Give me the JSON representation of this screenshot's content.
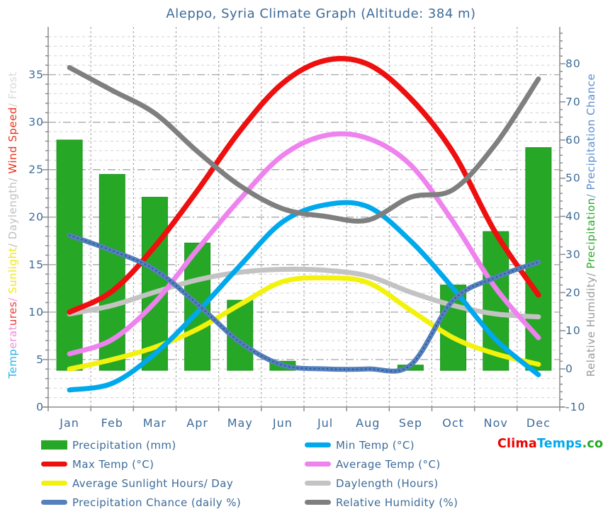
{
  "title": "Aleppo, Syria Climate Graph (Altitude: 384 m)",
  "chart_data": {
    "type": "bar+line combo, dual axis climate graph",
    "months": [
      "Jan",
      "Feb",
      "Mar",
      "Apr",
      "May",
      "Jun",
      "Jul",
      "Aug",
      "Sep",
      "Oct",
      "Nov",
      "Dec"
    ],
    "left_axis": {
      "ticks": [
        0,
        5,
        10,
        15,
        20,
        25,
        30,
        35
      ],
      "range": [
        0,
        39.5
      ],
      "minor_tick_step": 1,
      "label_segments": [
        {
          "text": "Temp",
          "color": "#2ab4e8"
        },
        {
          "text": "erat",
          "color": "#f08fd8"
        },
        {
          "text": "ures",
          "color": "#e83a3a"
        },
        {
          "text": "/ ",
          "color": "#f08fd8"
        },
        {
          "text": "Sunlight",
          "color": "#f0e818"
        },
        {
          "text": "/ ",
          "color": "#b9b9b9"
        },
        {
          "text": "Daylength",
          "color": "#c0c0c0"
        },
        {
          "text": "/ ",
          "color": "#b9b9b9"
        },
        {
          "text": "Wind Speed",
          "color": "#ee3018"
        },
        {
          "text": "/ ",
          "color": "#cfcfcf"
        },
        {
          "text": "Frost",
          "color": "#d9d9d9"
        }
      ]
    },
    "right_axis": {
      "ticks": [
        -10,
        0,
        10,
        20,
        30,
        40,
        50,
        60,
        70,
        80
      ],
      "range": [
        -10,
        88.5
      ],
      "minor_tick_step": 2,
      "label_segments": [
        {
          "text": "Relative Humidity",
          "color": "#9a9a9a"
        },
        {
          "text": "/ ",
          "color": "#9a9a9a"
        },
        {
          "text": "Precipitation",
          "color": "#2ca82c"
        },
        {
          "text": "/ ",
          "color": "#6f9fd8"
        },
        {
          "text": "Precipitation Chance",
          "color": "#5b8fd0"
        }
      ]
    },
    "bars": {
      "name": "Precipitation (mm)",
      "axis": "right",
      "color": "#26a826",
      "edge_color": "#1b941f",
      "values": [
        60,
        51,
        45,
        33,
        18,
        2,
        0,
        0,
        1,
        22,
        36,
        58
      ]
    },
    "series": [
      {
        "name": "Daylength (Hours)",
        "axis": "left",
        "color": "#c3c3c3",
        "width": 7,
        "values": [
          9.8,
          10.7,
          12.1,
          13.4,
          14.2,
          14.5,
          14.4,
          13.8,
          12.1,
          10.7,
          9.8,
          9.5
        ]
      },
      {
        "name": "Average Sunlight Hours/ Day",
        "axis": "left",
        "color": "#f2f20c",
        "width": 7,
        "values": [
          4.0,
          5.0,
          6.3,
          8.2,
          10.8,
          13.2,
          13.6,
          13.1,
          10.2,
          7.3,
          5.6,
          4.5
        ]
      },
      {
        "name": "Average Temp (°C)",
        "axis": "left",
        "color": "#ee82ee",
        "width": 7,
        "values": [
          5.6,
          7.1,
          11.0,
          16.6,
          21.9,
          26.5,
          28.6,
          28.3,
          25.5,
          19.5,
          12.5,
          7.3
        ]
      },
      {
        "name": "Max Temp (°C)",
        "axis": "left",
        "color": "#ee0f0f",
        "width": 7.5,
        "values": [
          10.0,
          12.2,
          16.9,
          22.8,
          29.1,
          34.1,
          36.5,
          36.1,
          32.5,
          26.8,
          18.3,
          11.8
        ]
      },
      {
        "name": "Min Temp (°C)",
        "axis": "left",
        "color": "#00a8ec",
        "width": 7,
        "values": [
          1.8,
          2.5,
          5.6,
          10.0,
          14.9,
          19.5,
          21.3,
          21.1,
          17.5,
          12.5,
          7.1,
          3.4
        ]
      },
      {
        "name": "Relative Humidity (%)",
        "axis": "right",
        "color": "#7f7f7f",
        "width": 7,
        "values": [
          79,
          73,
          67,
          57,
          48,
          42,
          40,
          39,
          45,
          47,
          59,
          76
        ]
      },
      {
        "name": "Precipitation Chance (daily %)",
        "axis": "right",
        "color": "#5580bb",
        "width": 7,
        "dotted_overlay": "#23549b",
        "values": [
          35,
          31,
          26,
          17,
          7,
          1,
          0,
          0,
          1,
          18,
          24,
          28
        ]
      }
    ],
    "grid": {
      "horizontal_minor": "every 1 left-unit, dashed",
      "horizontal_major": "every 5 left-units, dash-dot",
      "vertical": "month boundaries, dashed"
    },
    "legend_position": "bottom, two columns"
  },
  "legend": {
    "col1": [
      {
        "label": "Precipitation (mm)",
        "swatch": "bar",
        "color": "#26a826"
      },
      {
        "label": "Max Temp (°C)",
        "swatch": "line",
        "color": "#ee0f0f"
      },
      {
        "label": "Average Sunlight Hours/ Day",
        "swatch": "line",
        "color": "#f2f20c"
      },
      {
        "label": "Precipitation Chance (daily %)",
        "swatch": "line",
        "color": "#5580bb"
      }
    ],
    "col2": [
      {
        "label": "Min Temp (°C)",
        "swatch": "line",
        "color": "#00a8ec"
      },
      {
        "label": "Average Temp (°C)",
        "swatch": "line",
        "color": "#ee82ee"
      },
      {
        "label": "Daylength (Hours)",
        "swatch": "line",
        "color": "#c3c3c3"
      },
      {
        "label": "Relative Humidity (%)",
        "swatch": "line",
        "color": "#7f7f7f"
      }
    ]
  },
  "logo": {
    "parts": [
      {
        "text": "Clima",
        "color": "#ee0000"
      },
      {
        "text": "Temps",
        "color": "#00a8ec"
      },
      {
        "text": ".com",
        "color": "#22aa22"
      }
    ]
  }
}
